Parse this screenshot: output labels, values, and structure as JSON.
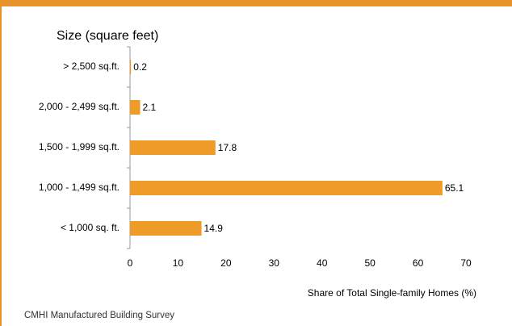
{
  "chart_data": {
    "type": "barh",
    "title": "Size (square feet)",
    "categories": [
      "> 2,500 sq.ft.",
      "2,000 - 2,499 sq.ft.",
      "1,500 - 1,999 sq.ft.",
      "1,000 - 1,499 sq.ft.",
      "< 1,000 sq. ft."
    ],
    "values": [
      0.2,
      2.1,
      17.8,
      65.1,
      14.9
    ],
    "color": "#ef9b28",
    "xlabel": "Share of Total Single-family Homes (%)",
    "xlim": [
      0,
      70
    ],
    "xticks": [
      0,
      10,
      20,
      30,
      40,
      50,
      60,
      70
    ],
    "grid": false
  },
  "source": "CMHI Manufactured Building Survey"
}
